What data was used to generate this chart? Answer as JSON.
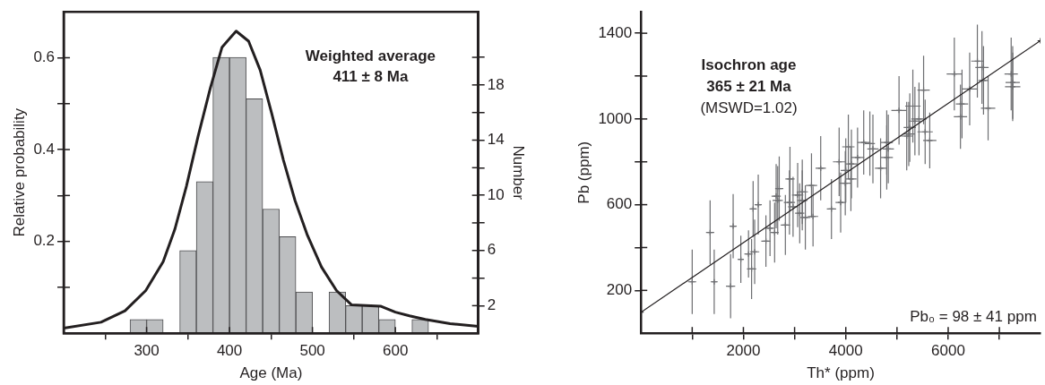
{
  "chart_data": [
    {
      "type": "histogram",
      "xlabel": "Age (Ma)",
      "ylabel": "Relative probability",
      "y2label": "Number",
      "xlim": [
        200,
        700
      ],
      "xticks": [
        300,
        400,
        500,
        600
      ],
      "ylim": [
        0,
        0.7
      ],
      "yticks": [
        {
          "value": 0.1,
          "label": null
        },
        0.2,
        {
          "value": 0.3,
          "label": null
        },
        0.4,
        {
          "value": 0.5,
          "label": null
        },
        0.6
      ],
      "y2lim": [
        0,
        23.3
      ],
      "y2ticks": [
        2,
        {
          "value": 4,
          "label": null
        },
        6,
        {
          "value": 8,
          "label": null
        },
        10,
        {
          "value": 12,
          "label": null
        },
        14,
        {
          "value": 16,
          "label": null
        },
        18,
        {
          "value": 20,
          "label": null
        }
      ],
      "annotations": [
        "Weighted average",
        "411 ± 8 Ma"
      ],
      "series": [
        {
          "type": "histogram",
          "axis": "y2",
          "color": "#bcbec0",
          "bins": [
            280,
            300,
            320,
            340,
            360,
            380,
            400,
            420,
            440,
            460,
            480,
            500,
            520,
            540,
            560,
            580,
            600,
            620,
            640
          ],
          "values": [
            1,
            1,
            0,
            6,
            11,
            20,
            20,
            17,
            9,
            7,
            3,
            0,
            3,
            2,
            2,
            1,
            0,
            1
          ]
        },
        {
          "type": "line",
          "axis": "y",
          "color": "#231f20",
          "x": [
            200,
            245,
            274,
            299,
            320,
            334,
            348,
            362,
            377,
            391,
            408,
            423,
            437,
            451,
            465,
            479,
            494,
            511,
            529,
            547,
            582,
            600,
            617,
            636,
            666,
            700
          ],
          "values": [
            0.011,
            0.024,
            0.049,
            0.093,
            0.156,
            0.226,
            0.32,
            0.428,
            0.535,
            0.623,
            0.658,
            0.636,
            0.573,
            0.478,
            0.377,
            0.289,
            0.213,
            0.144,
            0.093,
            0.062,
            0.059,
            0.046,
            0.038,
            0.03,
            0.021,
            0.015
          ]
        }
      ]
    },
    {
      "type": "scatter",
      "xlabel": "Th* (ppm)",
      "ylabel": "Pb (ppm)",
      "marker": "cross",
      "xlim": [
        0,
        7800
      ],
      "xticks": [
        {
          "value": 1000,
          "label": null
        },
        2000,
        {
          "value": 3000,
          "label": null
        },
        4000,
        {
          "value": 5000,
          "label": null
        },
        6000,
        {
          "value": 7000,
          "label": null
        }
      ],
      "ylim": [
        0,
        1500
      ],
      "yticks": [
        200,
        {
          "value": 400,
          "label": null
        },
        600,
        {
          "value": 800,
          "label": null
        },
        1000,
        {
          "value": 1200,
          "label": null
        },
        1400
      ],
      "annotations": [
        "Isochron age",
        "365 ± 21 Ma",
        "(MSWD=1.02)",
        "Pb₀ = 98 ± 41 ppm"
      ],
      "series": [
        {
          "type": "scatter",
          "color": "#6d6e71",
          "x": [
            1000,
            1350,
            1430,
            1750,
            1800,
            1950,
            2100,
            2160,
            2220,
            2190,
            2290,
            2440,
            2520,
            2610,
            2640,
            2670,
            2700,
            2820,
            2900,
            2910,
            2970,
            3060,
            3100,
            3150,
            3150,
            3210,
            3330,
            3360,
            3510,
            3720,
            3870,
            3900,
            3990,
            4000,
            4050,
            4100,
            4110,
            4230,
            4350,
            4470,
            4530,
            4680,
            4800,
            4830,
            4800,
            5040,
            5190,
            5230,
            5250,
            5310,
            5350,
            5430,
            5520,
            5550,
            5640,
            6120,
            6240,
            6270,
            6420,
            6570,
            6660,
            6690,
            6780,
            7230,
            7260,
            7260
          ],
          "values": [
            240,
            470,
            240,
            220,
            500,
            345,
            370,
            300,
            380,
            580,
            600,
            430,
            490,
            470,
            640,
            620,
            675,
            505,
            610,
            720,
            590,
            645,
            560,
            660,
            620,
            540,
            690,
            545,
            770,
            580,
            800,
            610,
            700,
            760,
            870,
            720,
            790,
            820,
            890,
            885,
            860,
            770,
            820,
            860,
            890,
            1040,
            920,
            930,
            960,
            1060,
            990,
            1000,
            1135,
            940,
            900,
            1210,
            1010,
            1070,
            1140,
            1270,
            1240,
            1180,
            1050,
            1210,
            1150,
            1170
          ],
          "errors": [
            150,
            150,
            150,
            150,
            150,
            110,
            110,
            140,
            150,
            130,
            140,
            120,
            130,
            140,
            150,
            160,
            150,
            140,
            150,
            150,
            140,
            150,
            140,
            150,
            140,
            150,
            150,
            140,
            150,
            140,
            160,
            140,
            150,
            150,
            150,
            150,
            160,
            140,
            150,
            150,
            160,
            140,
            150,
            160,
            150,
            160,
            160,
            150,
            160,
            170,
            160,
            170,
            160,
            150,
            130,
            170,
            150,
            160,
            170,
            170,
            170,
            160,
            150,
            170,
            160,
            170
          ],
          "xerrors": [
            80,
            80,
            70,
            90,
            70,
            60,
            80,
            90,
            90,
            70,
            70,
            90,
            80,
            80,
            90,
            100,
            80,
            90,
            110,
            90,
            100,
            110,
            90,
            110,
            100,
            100,
            110,
            100,
            100,
            90,
            120,
            100,
            110,
            100,
            120,
            110,
            110,
            130,
            120,
            100,
            110,
            110,
            120,
            110,
            120,
            150,
            110,
            120,
            120,
            150,
            120,
            150,
            120,
            150,
            130,
            150,
            130,
            120,
            140,
            120,
            130,
            100,
            140,
            130,
            150,
            140
          ]
        },
        {
          "type": "line",
          "color": "#231f20",
          "x": [
            0,
            7800
          ],
          "values": [
            98,
            1365
          ]
        }
      ]
    }
  ]
}
